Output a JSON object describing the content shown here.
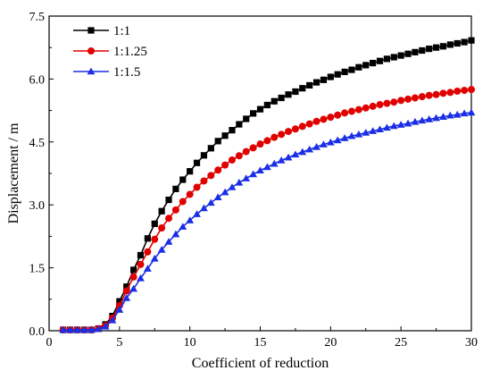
{
  "chart_data": {
    "type": "line",
    "xlabel": "Coefficient of reduction",
    "ylabel": "Displacement / m",
    "xlim": [
      0,
      30
    ],
    "ylim": [
      0,
      7.5
    ],
    "x_ticks": [
      "0",
      "5",
      "10",
      "15",
      "20",
      "25",
      "30"
    ],
    "y_ticks": [
      "0.0",
      "1.5",
      "3.0",
      "4.5",
      "6.0",
      "7.5"
    ],
    "grid": false,
    "legend_position": "top-left",
    "x": [
      1,
      1.5,
      2,
      2.5,
      3,
      3.5,
      4,
      4.5,
      5,
      5.5,
      6,
      6.5,
      7,
      7.5,
      8,
      8.5,
      9,
      9.5,
      10,
      10.5,
      11,
      11.5,
      12,
      12.5,
      13,
      13.5,
      14,
      14.5,
      15,
      15.5,
      16,
      16.5,
      17,
      17.5,
      18,
      18.5,
      19,
      19.5,
      20,
      20.5,
      21,
      21.5,
      22,
      22.5,
      23,
      23.5,
      24,
      24.5,
      25,
      25.5,
      26,
      26.5,
      27,
      27.5,
      28,
      28.5,
      29,
      29.5,
      30
    ],
    "series": [
      {
        "name": "1:1",
        "color": "#000000",
        "marker": "square",
        "values": [
          0.02,
          0.02,
          0.02,
          0.02,
          0.02,
          0.05,
          0.15,
          0.35,
          0.7,
          1.05,
          1.45,
          1.8,
          2.2,
          2.55,
          2.85,
          3.12,
          3.38,
          3.6,
          3.8,
          4.0,
          4.18,
          4.35,
          4.52,
          4.65,
          4.78,
          4.92,
          5.05,
          5.18,
          5.28,
          5.38,
          5.47,
          5.55,
          5.63,
          5.7,
          5.78,
          5.85,
          5.92,
          5.98,
          6.05,
          6.11,
          6.17,
          6.22,
          6.28,
          6.33,
          6.38,
          6.43,
          6.48,
          6.52,
          6.56,
          6.6,
          6.64,
          6.68,
          6.72,
          6.75,
          6.78,
          6.82,
          6.85,
          6.88,
          6.92
        ]
      },
      {
        "name": "1:1.25",
        "color": "#e00000",
        "marker": "circle",
        "values": [
          0.02,
          0.02,
          0.02,
          0.02,
          0.02,
          0.05,
          0.12,
          0.3,
          0.6,
          0.95,
          1.28,
          1.58,
          1.88,
          2.18,
          2.45,
          2.68,
          2.88,
          3.08,
          3.25,
          3.42,
          3.57,
          3.7,
          3.83,
          3.95,
          4.07,
          4.17,
          4.27,
          4.36,
          4.45,
          4.53,
          4.61,
          4.68,
          4.75,
          4.81,
          4.87,
          4.93,
          4.99,
          5.04,
          5.09,
          5.14,
          5.19,
          5.23,
          5.27,
          5.31,
          5.35,
          5.39,
          5.42,
          5.45,
          5.49,
          5.52,
          5.55,
          5.58,
          5.61,
          5.63,
          5.66,
          5.68,
          5.71,
          5.73,
          5.75
        ]
      },
      {
        "name": "1:1.5",
        "color": "#1a2ee6",
        "marker": "triangle",
        "values": [
          0.02,
          0.02,
          0.02,
          0.02,
          0.02,
          0.04,
          0.1,
          0.25,
          0.5,
          0.78,
          1.0,
          1.25,
          1.48,
          1.72,
          1.93,
          2.12,
          2.3,
          2.48,
          2.63,
          2.78,
          2.92,
          3.05,
          3.18,
          3.3,
          3.42,
          3.53,
          3.63,
          3.73,
          3.82,
          3.9,
          3.98,
          4.06,
          4.13,
          4.2,
          4.26,
          4.32,
          4.38,
          4.44,
          4.49,
          4.54,
          4.59,
          4.64,
          4.68,
          4.72,
          4.76,
          4.8,
          4.84,
          4.88,
          4.91,
          4.94,
          4.98,
          5.01,
          5.04,
          5.07,
          5.1,
          5.13,
          5.15,
          5.18,
          5.2
        ]
      }
    ]
  }
}
